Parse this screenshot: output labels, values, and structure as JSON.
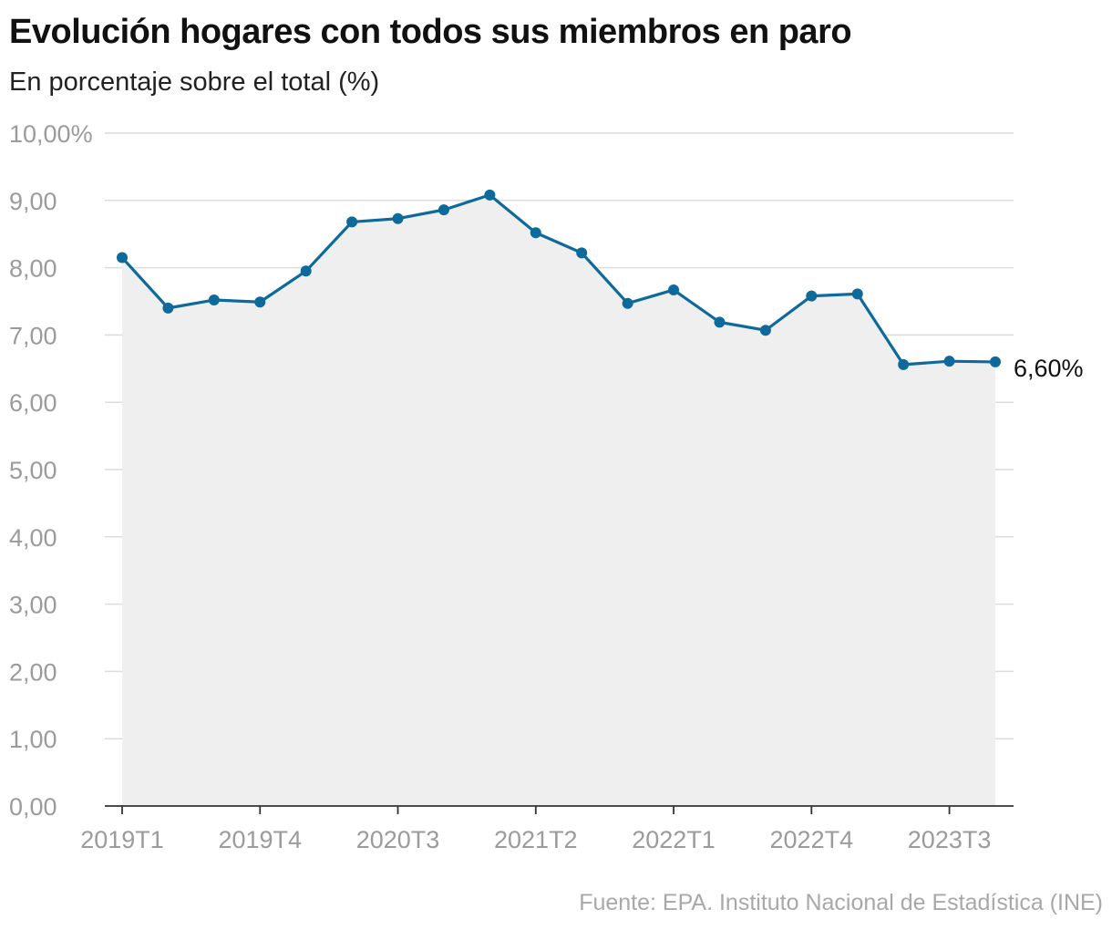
{
  "title": "Evolución hogares con todos sus miembros en paro",
  "subtitle": "En porcentaje sobre el total (%)",
  "source": "Fuente: EPA. Instituto Nacional de Estadística (INE)",
  "colors": {
    "line": "#0e6a9a",
    "area": "#efefef",
    "grid": "#dcdcdc",
    "axis": "#333333",
    "tick_text": "#9b9b9b"
  },
  "chart_data": {
    "type": "line",
    "x": [
      "2019T1",
      "2019T2",
      "2019T3",
      "2019T4",
      "2020T1",
      "2020T2",
      "2020T3",
      "2020T4",
      "2021T1",
      "2021T2",
      "2021T3",
      "2021T4",
      "2022T1",
      "2022T2",
      "2022T3",
      "2022T4",
      "2023T1",
      "2023T2",
      "2023T3",
      "2023T4"
    ],
    "x_tick_labels": [
      "2019T1",
      "2019T4",
      "2020T3",
      "2021T2",
      "2022T1",
      "2022T4",
      "2023T3"
    ],
    "x_tick_indices": [
      0,
      3,
      6,
      9,
      12,
      15,
      18
    ],
    "series": [
      {
        "values": [
          8.15,
          7.4,
          7.52,
          7.49,
          7.95,
          8.68,
          8.73,
          8.86,
          9.08,
          8.52,
          8.22,
          7.47,
          7.67,
          7.19,
          7.07,
          7.58,
          7.61,
          6.56,
          6.61,
          6.6
        ]
      }
    ],
    "ylim": [
      0,
      10
    ],
    "y_ticks": [
      0,
      1,
      2,
      3,
      4,
      5,
      6,
      7,
      8,
      9,
      10
    ],
    "y_tick_labels": [
      "0,00",
      "1,00",
      "2,00",
      "3,00",
      "4,00",
      "5,00",
      "6,00",
      "7,00",
      "8,00",
      "9,00",
      "10,00%"
    ],
    "end_label": "6,60%",
    "area_fill": true,
    "markers": true,
    "grid": "horizontal"
  }
}
